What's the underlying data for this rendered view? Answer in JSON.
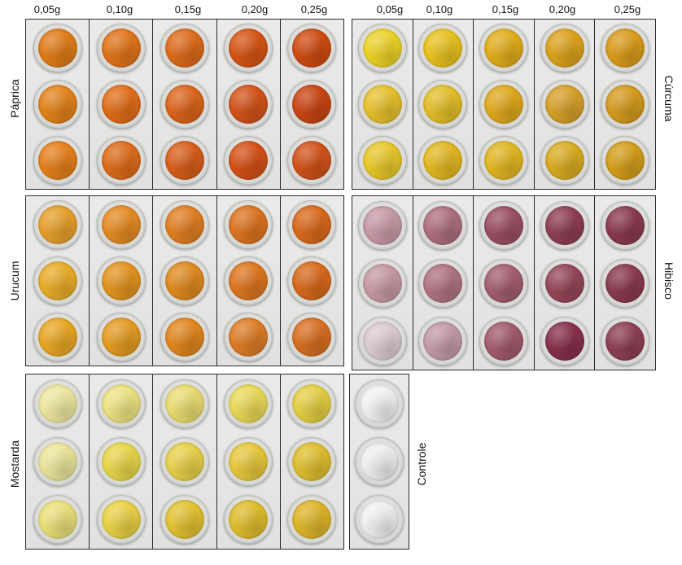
{
  "concentrations": [
    "0,05g",
    "0,10g",
    "0,15g",
    "0,20g",
    "0,25g"
  ],
  "panels": {
    "paprica": {
      "label": "Páprica",
      "colors": [
        [
          "#e07c18",
          "#e0741a",
          "#dd6b1c",
          "#d65516",
          "#cf4c12"
        ],
        [
          "#e3831b",
          "#e06e1a",
          "#dc651b",
          "#d3531a",
          "#c94514"
        ],
        [
          "#e5801c",
          "#dd6c1a",
          "#d75e1a",
          "#d55117",
          "#d1531a"
        ]
      ]
    },
    "curcuma": {
      "label": "Cúrcuma",
      "colors": [
        [
          "#ecd22a",
          "#e8c21f",
          "#e1ad1c",
          "#dca21c",
          "#d99c1c"
        ],
        [
          "#e6c12e",
          "#e3be2a",
          "#dfa91e",
          "#d7a02a",
          "#d59b1e"
        ],
        [
          "#e8c82a",
          "#e2b822",
          "#e1b722",
          "#daac22",
          "#d49e1c"
        ]
      ]
    },
    "urucum": {
      "label": "Urucum",
      "colors": [
        [
          "#e7a02c",
          "#e48b24",
          "#e07f22",
          "#dc7420",
          "#d9691c"
        ],
        [
          "#e9ad28",
          "#e29420",
          "#df8a20",
          "#dd7620",
          "#d76a1c"
        ],
        [
          "#e8a724",
          "#e49b22",
          "#e0861f",
          "#dd7d26",
          "#d86f22"
        ]
      ]
    },
    "hibisco": {
      "label": "Hibisco",
      "colors": [
        [
          "#c79aa6",
          "#ad6f80",
          "#9a4f64",
          "#8f3e55",
          "#8a3a50"
        ],
        [
          "#c699a4",
          "#b07382",
          "#a35e70",
          "#954759",
          "#8a3a4f"
        ],
        [
          "#dccbcf",
          "#c29aa5",
          "#a25b6e",
          "#86304a",
          "#8e3f55"
        ]
      ]
    },
    "mostarda": {
      "label": "Mostarda",
      "colors": [
        [
          "#eee7a0",
          "#ece382",
          "#eadd70",
          "#e9d958",
          "#e4cf45"
        ],
        [
          "#ebe59a",
          "#e8d64a",
          "#e8d04a",
          "#e6c83c",
          "#e0be30"
        ],
        [
          "#ebe07a",
          "#e9d146",
          "#e3c232",
          "#dfbd2e",
          "#ddb52a"
        ]
      ]
    },
    "controle": {
      "label": "Controle",
      "colors": [
        [
          "#f1f1f1"
        ],
        [
          "#eeeeee"
        ],
        [
          "#f0f0f0"
        ]
      ]
    }
  }
}
